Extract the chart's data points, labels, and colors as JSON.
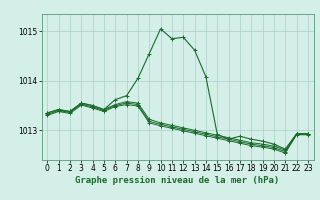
{
  "title": "Graphe pression niveau de la mer (hPa)",
  "background_color": "#d4eee8",
  "grid_color": "#a8cfc8",
  "line_color": "#1a6b2a",
  "xlim": [
    -0.5,
    23.5
  ],
  "ylim": [
    1012.4,
    1015.35
  ],
  "yticks": [
    1013,
    1014,
    1015
  ],
  "xticks": [
    0,
    1,
    2,
    3,
    4,
    5,
    6,
    7,
    8,
    9,
    10,
    11,
    12,
    13,
    14,
    15,
    16,
    17,
    18,
    19,
    20,
    21,
    22,
    23
  ],
  "flat1": [
    1013.35,
    1013.42,
    1013.38,
    1013.55,
    1013.5,
    1013.42,
    1013.52,
    1013.58,
    1013.55,
    1013.22,
    1013.15,
    1013.1,
    1013.05,
    1013.0,
    1012.95,
    1012.9,
    1012.85,
    1012.8,
    1012.75,
    1012.72,
    1012.68,
    1012.6,
    1012.93,
    1012.93
  ],
  "flat2": [
    1013.32,
    1013.4,
    1013.36,
    1013.53,
    1013.47,
    1013.4,
    1013.5,
    1013.55,
    1013.52,
    1013.18,
    1013.12,
    1013.07,
    1013.02,
    1012.97,
    1012.92,
    1012.87,
    1012.82,
    1012.77,
    1012.72,
    1012.69,
    1012.65,
    1012.57,
    1012.92,
    1012.92
  ],
  "flat3": [
    1013.3,
    1013.38,
    1013.34,
    1013.51,
    1013.45,
    1013.38,
    1013.48,
    1013.52,
    1013.49,
    1013.15,
    1013.09,
    1013.04,
    1012.99,
    1012.94,
    1012.89,
    1012.84,
    1012.79,
    1012.74,
    1012.69,
    1012.66,
    1012.62,
    1012.54,
    1012.91,
    1012.91
  ],
  "main": [
    1013.35,
    1013.42,
    1013.38,
    1013.55,
    1013.5,
    1013.42,
    1013.62,
    1013.7,
    1014.05,
    1014.55,
    1015.05,
    1014.85,
    1014.88,
    1014.62,
    1014.08,
    1012.92,
    1012.82,
    1012.88,
    1012.82,
    1012.78,
    1012.72,
    1012.62,
    1012.93,
    1012.93
  ],
  "title_fontsize": 6.5,
  "tick_fontsize": 5.5
}
